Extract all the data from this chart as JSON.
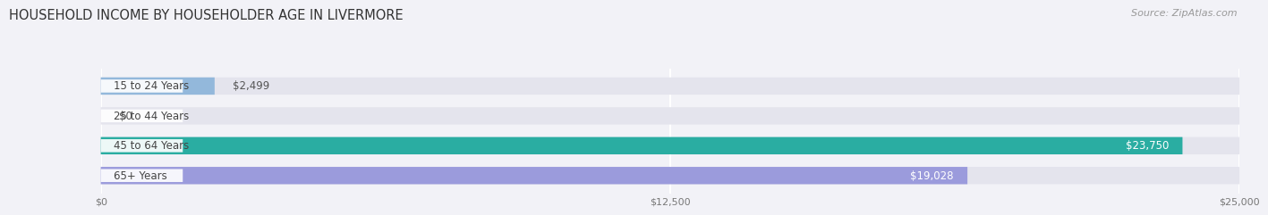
{
  "title": "HOUSEHOLD INCOME BY HOUSEHOLDER AGE IN LIVERMORE",
  "source": "Source: ZipAtlas.com",
  "categories": [
    "15 to 24 Years",
    "25 to 44 Years",
    "45 to 64 Years",
    "65+ Years"
  ],
  "values": [
    2499,
    0,
    23750,
    19028
  ],
  "max_value": 25000,
  "bar_colors": [
    "#93b8db",
    "#c9aad4",
    "#2aada2",
    "#9b9bdc"
  ],
  "bg_bar_color": "#e4e4ed",
  "value_labels": [
    "$2,499",
    "$0",
    "$23,750",
    "$19,028"
  ],
  "xtick_labels": [
    "$0",
    "$12,500",
    "$25,000"
  ],
  "xtick_values": [
    0,
    12500,
    25000
  ],
  "background_color": "#f2f2f7",
  "title_fontsize": 10.5,
  "source_fontsize": 8,
  "label_fontsize": 8.5,
  "value_fontsize": 8.5
}
